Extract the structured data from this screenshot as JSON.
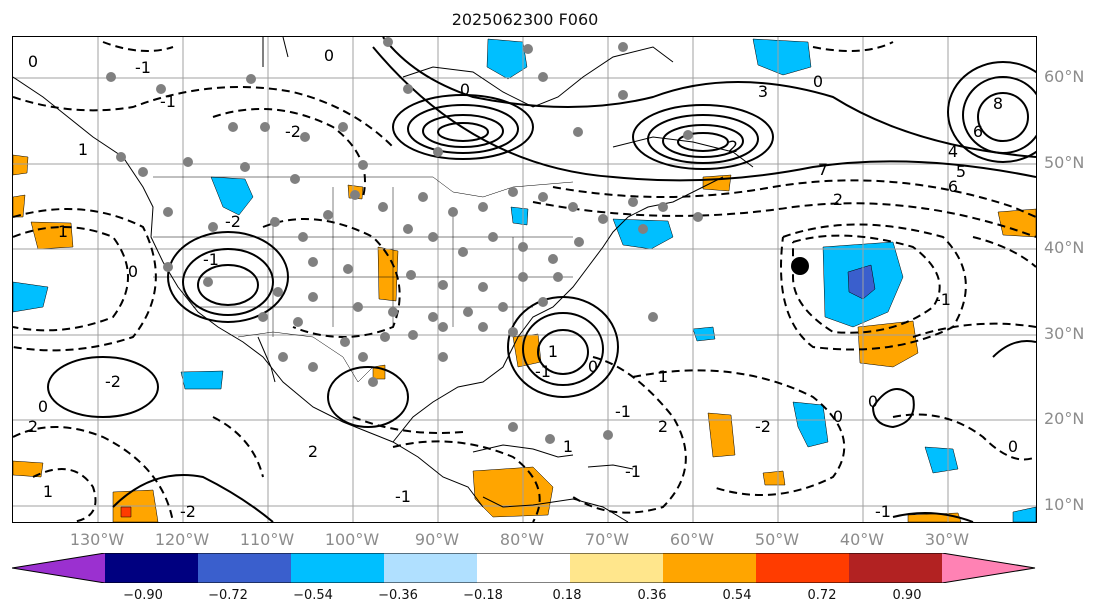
{
  "title": "2025062300 F060",
  "lat_labels": [
    "60°N",
    "50°N",
    "40°N",
    "30°N",
    "20°N",
    "10°N"
  ],
  "lon_labels": [
    "130°W",
    "120°W",
    "110°W",
    "100°W",
    "90°W",
    "80°W",
    "70°W",
    "60°W",
    "50°W",
    "40°W",
    "30°W"
  ],
  "colorbar": {
    "ticks": [
      "−0.90",
      "−0.72",
      "−0.54",
      "−0.36",
      "−0.18",
      "0.18",
      "0.36",
      "0.54",
      "0.72",
      "0.90"
    ],
    "colors": [
      "#9b30d0",
      "#000080",
      "#3a5fcd",
      "#00bfff",
      "#b0e0ff",
      "#ffffff",
      "#ffe68c",
      "#ffa500",
      "#ff3c00",
      "#b22222",
      "#ff82b4"
    ]
  },
  "contour_labels": [
    "0",
    "-1",
    "0",
    "1",
    "-2",
    "-1",
    "0",
    "-1",
    "3",
    "2",
    "0",
    "8",
    "6",
    "4",
    "5",
    "6",
    "7",
    "2",
    "-1",
    "1",
    "0",
    "-2",
    "1",
    "-1",
    "0",
    "2",
    "-2",
    "-1",
    "0",
    "1",
    "-1",
    "2",
    "1",
    "0",
    "-2",
    "-1",
    "0",
    "1",
    "2",
    "-1",
    "0",
    "-2"
  ]
}
